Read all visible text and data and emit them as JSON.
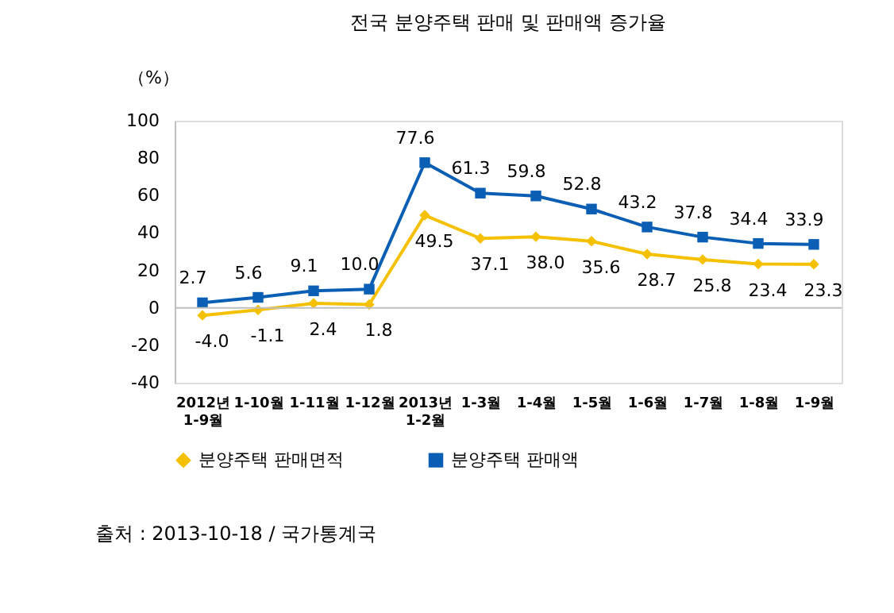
{
  "chart_data": {
    "type": "line",
    "title": "전국 분양주택 판매 및 판매액 증가율",
    "ylabel": "（%）",
    "categories": [
      "2012년\n1-9월",
      "1-10월",
      "1-11월",
      "1-12월",
      "2013년\n1-2월",
      "1-3월",
      "1-4월",
      "1-5월",
      "1-6월",
      "1-7월",
      "1-8월",
      "1-9월"
    ],
    "series": [
      {
        "name": "분양주택 판매면적",
        "color": "#f5c000",
        "marker": "diamond",
        "values": [
          -4.0,
          -1.1,
          2.4,
          1.8,
          49.5,
          37.1,
          38.0,
          35.6,
          28.7,
          25.8,
          23.4,
          23.3
        ],
        "value_labels": [
          "-4.0",
          "-1.1",
          "2.4",
          "1.8",
          "49.5",
          "37.1",
          "38.0",
          "35.6",
          "28.7",
          "25.8",
          "23.4",
          "23.3"
        ]
      },
      {
        "name": "분양주택 판매액",
        "color": "#0a5fb4",
        "marker": "square",
        "values": [
          2.7,
          5.6,
          9.1,
          10.0,
          77.6,
          61.3,
          59.8,
          52.8,
          43.2,
          37.8,
          34.4,
          33.9
        ],
        "value_labels": [
          "2.7",
          "5.6",
          "9.1",
          "10.0",
          "77.6",
          "61.3",
          "59.8",
          "52.8",
          "43.2",
          "37.8",
          "34.4",
          "33.9"
        ]
      }
    ],
    "ylim": [
      -40,
      100
    ],
    "yticks": [
      -40,
      -20,
      0,
      20,
      40,
      60,
      80,
      100
    ],
    "ref_lines": [
      {
        "axis": "y",
        "value": 0,
        "color": "#bfbfbf"
      }
    ],
    "grid": false,
    "legend": "bottom",
    "line_style": "solid",
    "annotations": [
      "출처 :  2013-10-18 / 국가통계국"
    ]
  }
}
